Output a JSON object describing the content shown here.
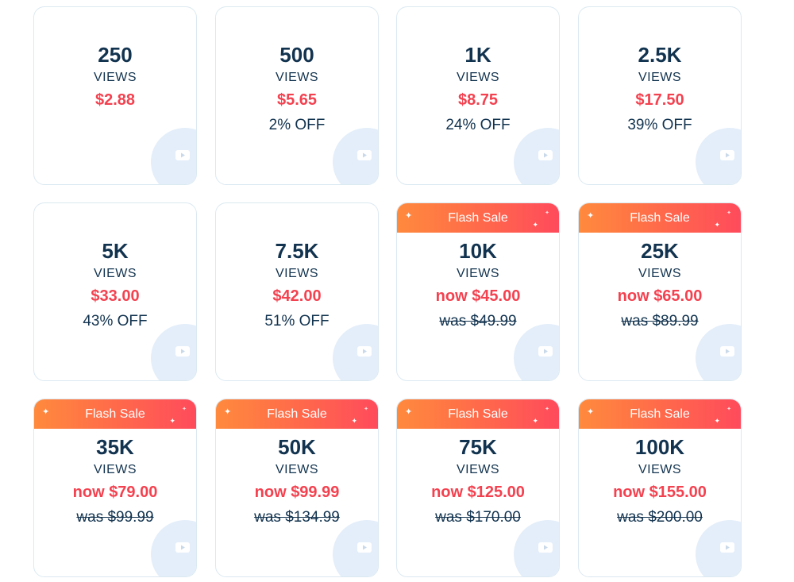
{
  "flash_label": "Flash Sale",
  "unit_label": "VIEWS",
  "packages": [
    {
      "qty": "250",
      "price": "$2.88",
      "discount": ""
    },
    {
      "qty": "500",
      "price": "$5.65",
      "discount": "2% OFF"
    },
    {
      "qty": "1K",
      "price": "$8.75",
      "discount": "24% OFF"
    },
    {
      "qty": "2.5K",
      "price": "$17.50",
      "discount": "39% OFF"
    },
    {
      "qty": "5K",
      "price": "$33.00",
      "discount": "43% OFF"
    },
    {
      "qty": "7.5K",
      "price": "$42.00",
      "discount": "51% OFF"
    },
    {
      "qty": "10K",
      "price": "now $45.00",
      "was": "was $49.99"
    },
    {
      "qty": "25K",
      "price": "now $65.00",
      "was": "was $89.99"
    },
    {
      "qty": "35K",
      "price": "now $79.00",
      "was": "was $99.99"
    },
    {
      "qty": "50K",
      "price": "now $99.99",
      "was": "was $134.99"
    },
    {
      "qty": "75K",
      "price": "now $125.00",
      "was": "was $170.00"
    },
    {
      "qty": "100K",
      "price": "now $155.00",
      "was": "was $200.00"
    }
  ],
  "colors": {
    "accent_price": "#f4414f",
    "text_dark": "#12334f",
    "banner_start": "#ff8a3d",
    "banner_end": "#ff4b5c",
    "icon_circle": "#e3eefa"
  },
  "icons": {
    "corner_icon": "youtube-play-icon",
    "banner_decoration": "sparkle-icon"
  }
}
